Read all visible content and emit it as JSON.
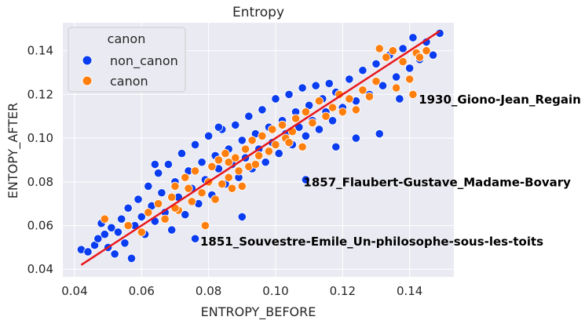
{
  "chart_data": {
    "type": "scatter",
    "title": "Entropy",
    "xlabel": "ENTROPY_BEFORE",
    "ylabel": "ENTOPY_AFTER",
    "xlim": [
      0.0365,
      0.1532
    ],
    "ylim": [
      0.0365,
      0.1528
    ],
    "xticks": [
      "0.04",
      "0.06",
      "0.08",
      "0.10",
      "0.12",
      "0.14"
    ],
    "yticks": [
      "0.04",
      "0.06",
      "0.08",
      "0.10",
      "0.12",
      "0.14"
    ],
    "xtick_values": [
      0.04,
      0.06,
      0.08,
      0.1,
      0.12,
      0.14
    ],
    "ytick_values": [
      0.04,
      0.06,
      0.08,
      0.1,
      0.12,
      0.14
    ],
    "grid": true,
    "legend": {
      "title": "canon",
      "placement": "top-left",
      "entries": [
        {
          "name": "non_canon",
          "color": "#0a3cf0"
        },
        {
          "name": "canon",
          "color": "#ff7f0e"
        }
      ]
    },
    "fit_line": {
      "x": [
        0.042,
        0.149
      ],
      "y": [
        0.042,
        0.149
      ],
      "color": "#e8161b"
    },
    "series": [
      {
        "name": "non_canon",
        "color": "#0a3cf0",
        "points": [
          [
            0.042,
            0.049
          ],
          [
            0.044,
            0.048
          ],
          [
            0.046,
            0.051
          ],
          [
            0.047,
            0.054
          ],
          [
            0.048,
            0.061
          ],
          [
            0.049,
            0.056
          ],
          [
            0.05,
            0.05
          ],
          [
            0.051,
            0.059
          ],
          [
            0.052,
            0.047
          ],
          [
            0.053,
            0.057
          ],
          [
            0.054,
            0.063
          ],
          [
            0.055,
            0.052
          ],
          [
            0.056,
            0.068
          ],
          [
            0.057,
            0.045
          ],
          [
            0.058,
            0.06
          ],
          [
            0.059,
            0.072
          ],
          [
            0.06,
            0.064
          ],
          [
            0.061,
            0.056
          ],
          [
            0.062,
            0.078
          ],
          [
            0.063,
            0.069
          ],
          [
            0.064,
            0.062
          ],
          [
            0.065,
            0.084
          ],
          [
            0.066,
            0.075
          ],
          [
            0.067,
            0.066
          ],
          [
            0.068,
            0.088
          ],
          [
            0.069,
            0.058
          ],
          [
            0.07,
            0.08
          ],
          [
            0.071,
            0.073
          ],
          [
            0.072,
            0.093
          ],
          [
            0.073,
            0.065
          ],
          [
            0.074,
            0.085
          ],
          [
            0.075,
            0.077
          ],
          [
            0.076,
            0.097
          ],
          [
            0.077,
            0.07
          ],
          [
            0.078,
            0.089
          ],
          [
            0.079,
            0.081
          ],
          [
            0.08,
            0.101
          ],
          [
            0.081,
            0.074
          ],
          [
            0.082,
            0.092
          ],
          [
            0.083,
            0.086
          ],
          [
            0.084,
            0.104
          ],
          [
            0.085,
            0.079
          ],
          [
            0.086,
            0.095
          ],
          [
            0.087,
            0.088
          ],
          [
            0.088,
            0.106
          ],
          [
            0.089,
            0.082
          ],
          [
            0.09,
            0.099
          ],
          [
            0.091,
            0.091
          ],
          [
            0.092,
            0.11
          ],
          [
            0.093,
            0.086
          ],
          [
            0.094,
            0.102
          ],
          [
            0.095,
            0.095
          ],
          [
            0.096,
            0.113
          ],
          [
            0.097,
            0.089
          ],
          [
            0.098,
            0.105
          ],
          [
            0.099,
            0.098
          ],
          [
            0.1,
            0.118
          ],
          [
            0.101,
            0.093
          ],
          [
            0.102,
            0.108
          ],
          [
            0.103,
            0.102
          ],
          [
            0.104,
            0.12
          ],
          [
            0.105,
            0.097
          ],
          [
            0.106,
            0.112
          ],
          [
            0.107,
            0.105
          ],
          [
            0.108,
            0.123
          ],
          [
            0.109,
            0.101
          ],
          [
            0.11,
            0.115
          ],
          [
            0.111,
            0.108
          ],
          [
            0.112,
            0.124
          ],
          [
            0.113,
            0.104
          ],
          [
            0.114,
            0.118
          ],
          [
            0.115,
            0.112
          ],
          [
            0.116,
            0.125
          ],
          [
            0.117,
            0.108
          ],
          [
            0.118,
            0.121
          ],
          [
            0.12,
            0.114
          ],
          [
            0.122,
            0.127
          ],
          [
            0.124,
            0.117
          ],
          [
            0.126,
            0.131
          ],
          [
            0.128,
            0.12
          ],
          [
            0.13,
            0.134
          ],
          [
            0.131,
            0.102
          ],
          [
            0.132,
            0.124
          ],
          [
            0.134,
            0.138
          ],
          [
            0.136,
            0.128
          ],
          [
            0.138,
            0.141
          ],
          [
            0.14,
            0.132
          ],
          [
            0.141,
            0.146
          ],
          [
            0.143,
            0.136
          ],
          [
            0.145,
            0.144
          ],
          [
            0.147,
            0.138
          ],
          [
            0.149,
            0.148
          ],
          [
            0.076,
            0.054
          ],
          [
            0.09,
            0.064
          ],
          [
            0.109,
            0.081
          ],
          [
            0.118,
            0.096
          ],
          [
            0.124,
            0.1
          ],
          [
            0.137,
            0.118
          ],
          [
            0.064,
            0.088
          ],
          [
            0.083,
            0.105
          ]
        ]
      },
      {
        "name": "canon",
        "color": "#ff7f0e",
        "points": [
          [
            0.049,
            0.063
          ],
          [
            0.056,
            0.06
          ],
          [
            0.06,
            0.057
          ],
          [
            0.062,
            0.066
          ],
          [
            0.065,
            0.07
          ],
          [
            0.067,
            0.063
          ],
          [
            0.069,
            0.073
          ],
          [
            0.07,
            0.078
          ],
          [
            0.071,
            0.067
          ],
          [
            0.073,
            0.082
          ],
          [
            0.075,
            0.071
          ],
          [
            0.076,
            0.085
          ],
          [
            0.078,
            0.075
          ],
          [
            0.079,
            0.06
          ],
          [
            0.08,
            0.08
          ],
          [
            0.081,
            0.087
          ],
          [
            0.082,
            0.072
          ],
          [
            0.083,
            0.09
          ],
          [
            0.084,
            0.079
          ],
          [
            0.085,
            0.093
          ],
          [
            0.086,
            0.082
          ],
          [
            0.087,
            0.077
          ],
          [
            0.088,
            0.091
          ],
          [
            0.089,
            0.085
          ],
          [
            0.09,
            0.078
          ],
          [
            0.091,
            0.095
          ],
          [
            0.092,
            0.087
          ],
          [
            0.093,
            0.099
          ],
          [
            0.095,
            0.092
          ],
          [
            0.096,
            0.101
          ],
          [
            0.098,
            0.094
          ],
          [
            0.099,
            0.104
          ],
          [
            0.1,
            0.097
          ],
          [
            0.102,
            0.106
          ],
          [
            0.103,
            0.1
          ],
          [
            0.105,
            0.103
          ],
          [
            0.106,
            0.109
          ],
          [
            0.108,
            0.096
          ],
          [
            0.109,
            0.112
          ],
          [
            0.111,
            0.107
          ],
          [
            0.113,
            0.117
          ],
          [
            0.115,
            0.11
          ],
          [
            0.117,
            0.114
          ],
          [
            0.119,
            0.12
          ],
          [
            0.12,
            0.112
          ],
          [
            0.122,
            0.118
          ],
          [
            0.124,
            0.113
          ],
          [
            0.126,
            0.122
          ],
          [
            0.128,
            0.119
          ],
          [
            0.13,
            0.126
          ],
          [
            0.131,
            0.141
          ],
          [
            0.133,
            0.137
          ],
          [
            0.135,
            0.14
          ],
          [
            0.136,
            0.123
          ],
          [
            0.138,
            0.135
          ],
          [
            0.14,
            0.127
          ],
          [
            0.141,
            0.12
          ],
          [
            0.142,
            0.139
          ],
          [
            0.143,
            0.137
          ],
          [
            0.145,
            0.14
          ],
          [
            0.07,
            0.068
          ],
          [
            0.074,
            0.077
          ],
          [
            0.086,
            0.089
          ],
          [
            0.094,
            0.088
          ],
          [
            0.104,
            0.098
          ]
        ]
      }
    ],
    "annotations": [
      {
        "text": "1930_Giono-Jean_Regain",
        "x": 0.1427,
        "y": 0.1177
      },
      {
        "text": "1857_Flaubert-Gustave_Madame-Bovary",
        "x": 0.1083,
        "y": 0.0797
      },
      {
        "text": "1851_Souvestre-Emile_Un-philosophe-sous-les-toits",
        "x": 0.0775,
        "y": 0.0527
      }
    ]
  }
}
